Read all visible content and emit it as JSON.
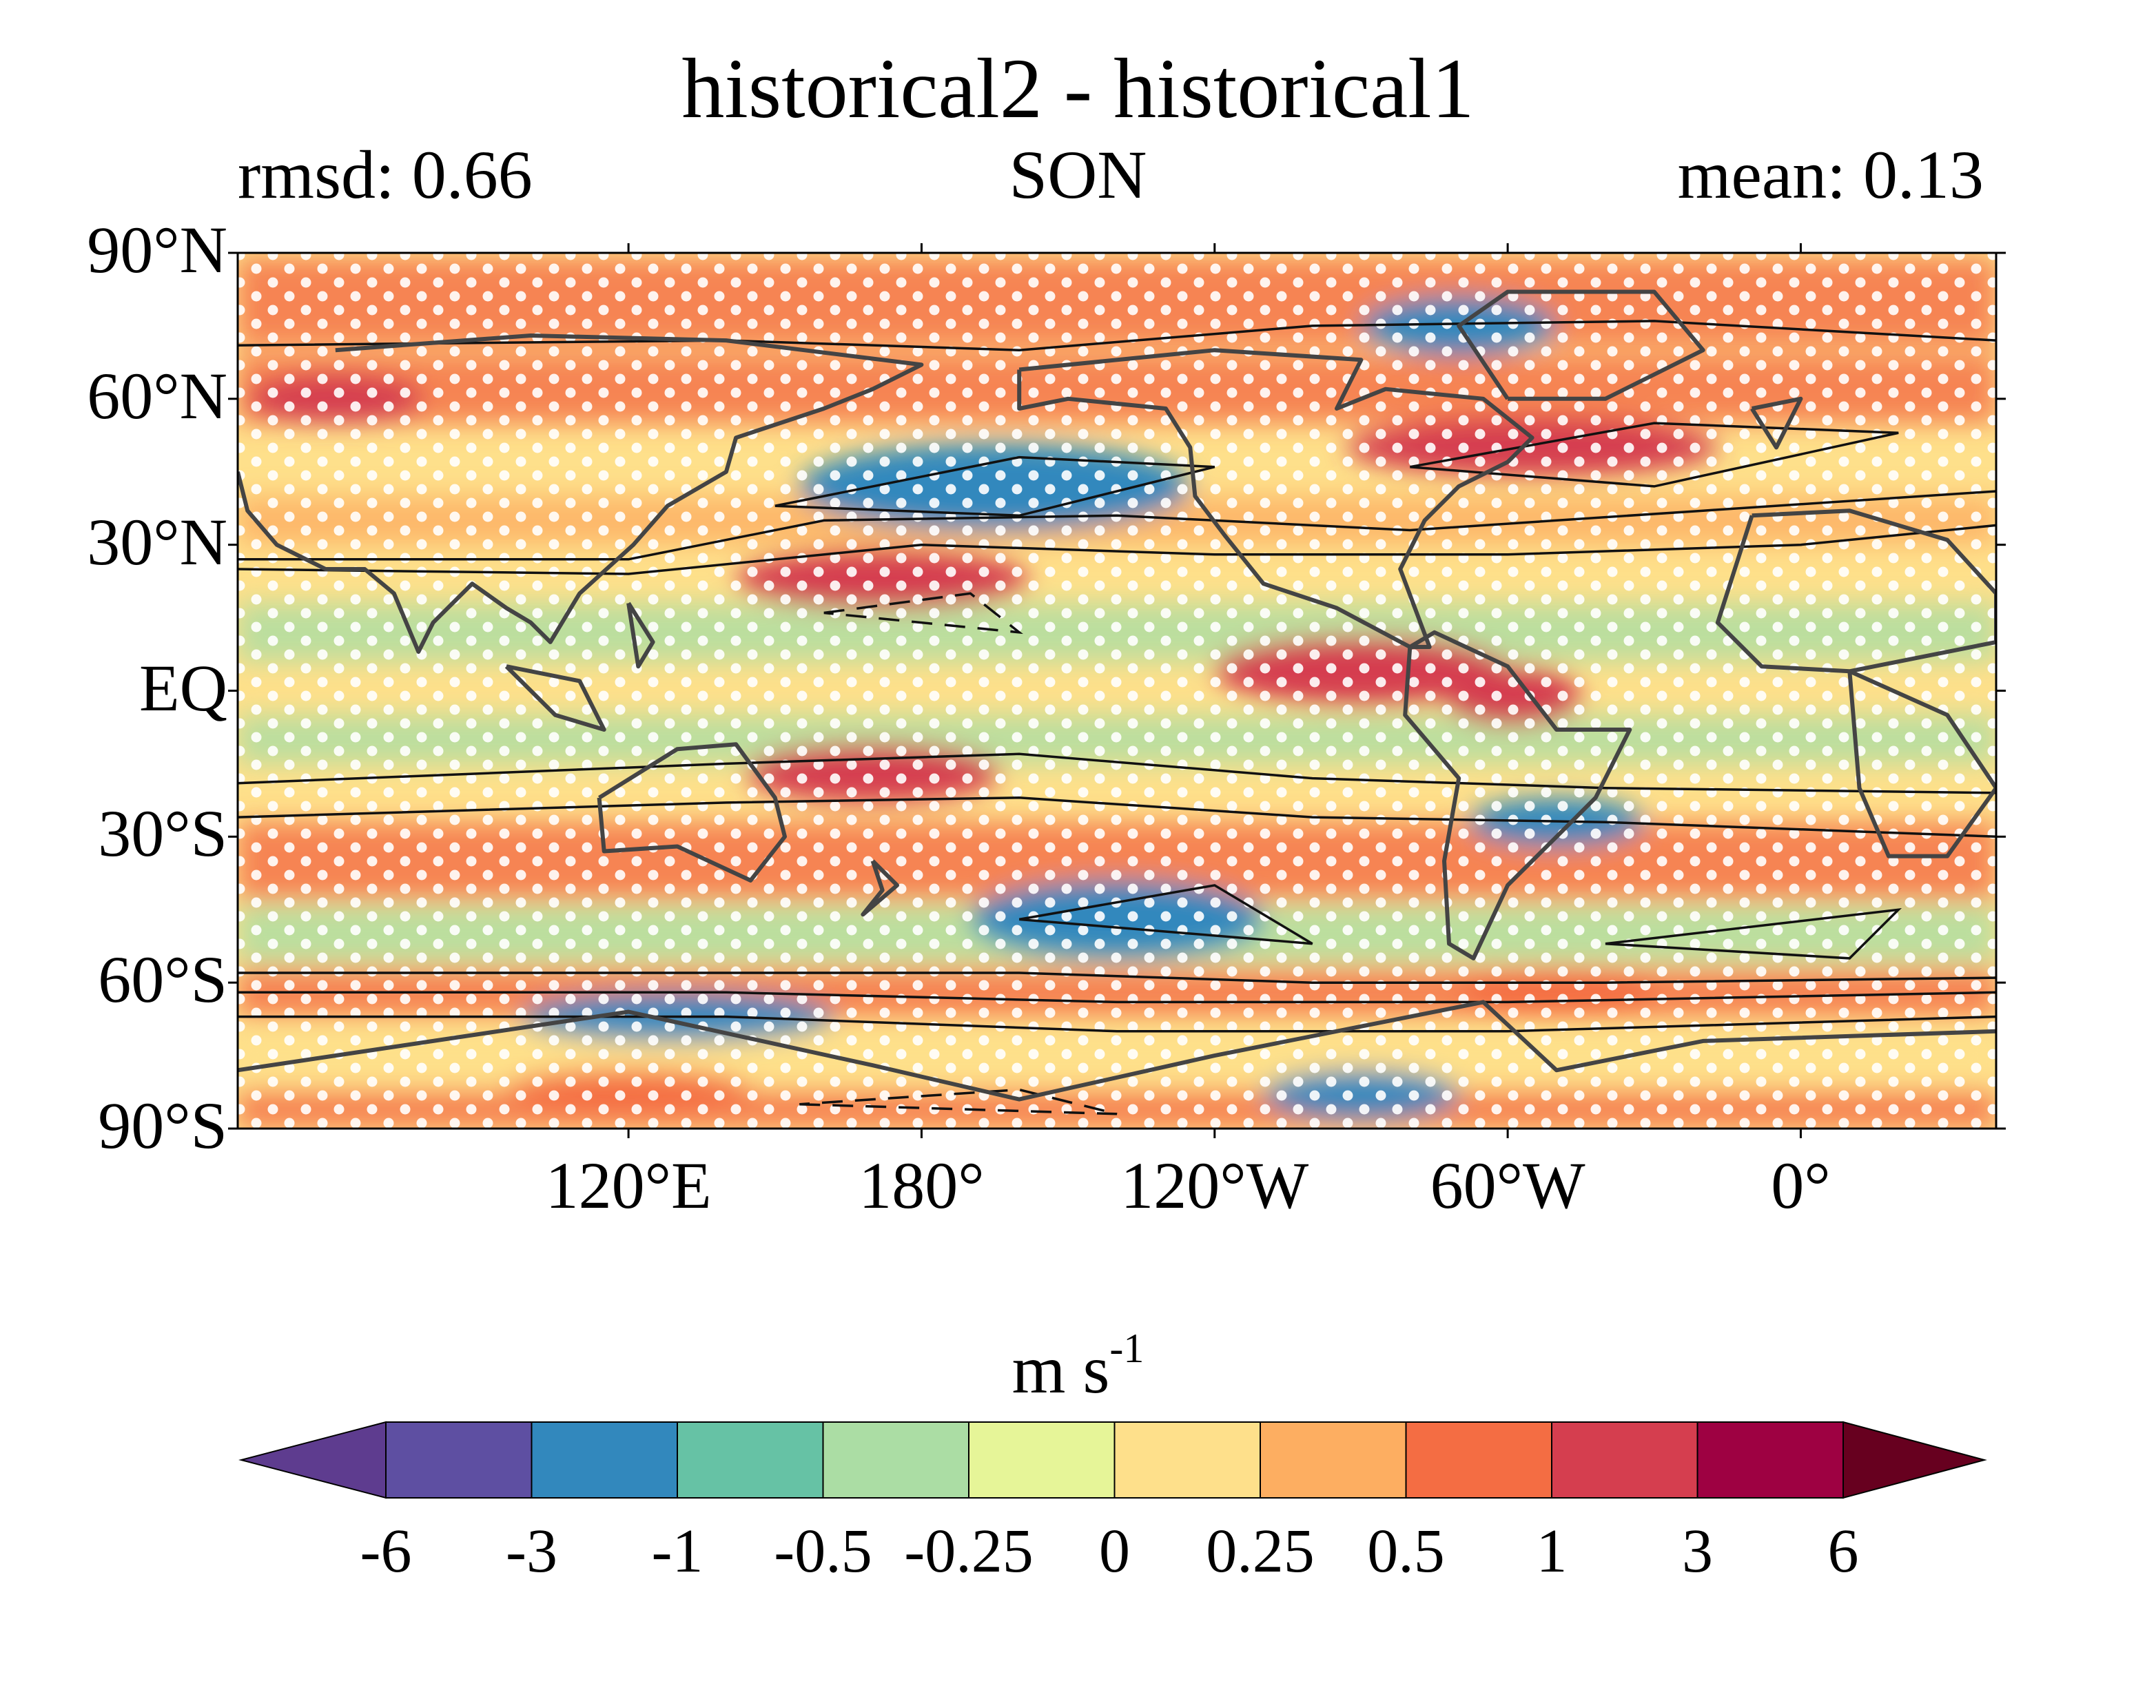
{
  "title": "historical2 - historical1",
  "subtitle_left": "rmsd: 0.66",
  "subtitle_center": "SON",
  "subtitle_right": "mean: 0.13",
  "lat_labels": [
    "90°N",
    "60°N",
    "30°N",
    "EQ",
    "30°S",
    "60°S",
    "90°S"
  ],
  "lon_labels": [
    "120°E",
    "180°",
    "120°W",
    "60°W",
    "0°"
  ],
  "colorbar": {
    "unit_base": "m s",
    "unit_exp": "-1",
    "tick_labels": [
      "-6",
      "-3",
      "-1",
      "-0.5",
      "-0.25",
      "0",
      "0.25",
      "0.5",
      "1",
      "3",
      "6"
    ],
    "colors": [
      "#5e3c8f",
      "#5e4fa2",
      "#3288bd",
      "#66c2a5",
      "#abdda4",
      "#e6f598",
      "#fee08b",
      "#fdae61",
      "#f46d43",
      "#d53e4f",
      "#9e0142",
      "#67001f"
    ]
  },
  "chart_data": {
    "type": "map",
    "projection": "equirectangular",
    "lon_range": [
      40,
      400
    ],
    "lat_range": [
      -90,
      90
    ],
    "lon_ticks": [
      120,
      180,
      240,
      300,
      360
    ],
    "lat_ticks": [
      90,
      60,
      30,
      0,
      -30,
      -60,
      -90
    ],
    "field_units": "m s-1",
    "overlay": [
      "coastlines",
      "climatology contours",
      "stippling"
    ],
    "anomaly_features": [
      {
        "lon": 195,
        "lat": 42,
        "value": -2.0
      },
      {
        "lon": 172,
        "lat": 23,
        "value": 1.2
      },
      {
        "lon": 270,
        "lat": 4,
        "value": 1.5
      },
      {
        "lon": 301,
        "lat": -1,
        "value": 1.2
      },
      {
        "lon": 170,
        "lat": -17,
        "value": 1.2
      },
      {
        "lon": 305,
        "lat": 50,
        "value": 1.3
      },
      {
        "lon": 290,
        "lat": 75,
        "value": -1.5
      },
      {
        "lon": 220,
        "lat": -47,
        "value": -1.5
      },
      {
        "lon": 310,
        "lat": -27,
        "value": -1.5
      },
      {
        "lon": 130,
        "lat": -67,
        "value": -1.5
      },
      {
        "lon": 270,
        "lat": -83,
        "value": -1.5
      },
      {
        "lon": 60,
        "lat": 60,
        "value": 1.2
      },
      {
        "lon": 310,
        "lat": -62,
        "value": 1.0
      },
      {
        "lon": 120,
        "lat": -82,
        "value": 0.8
      }
    ]
  }
}
